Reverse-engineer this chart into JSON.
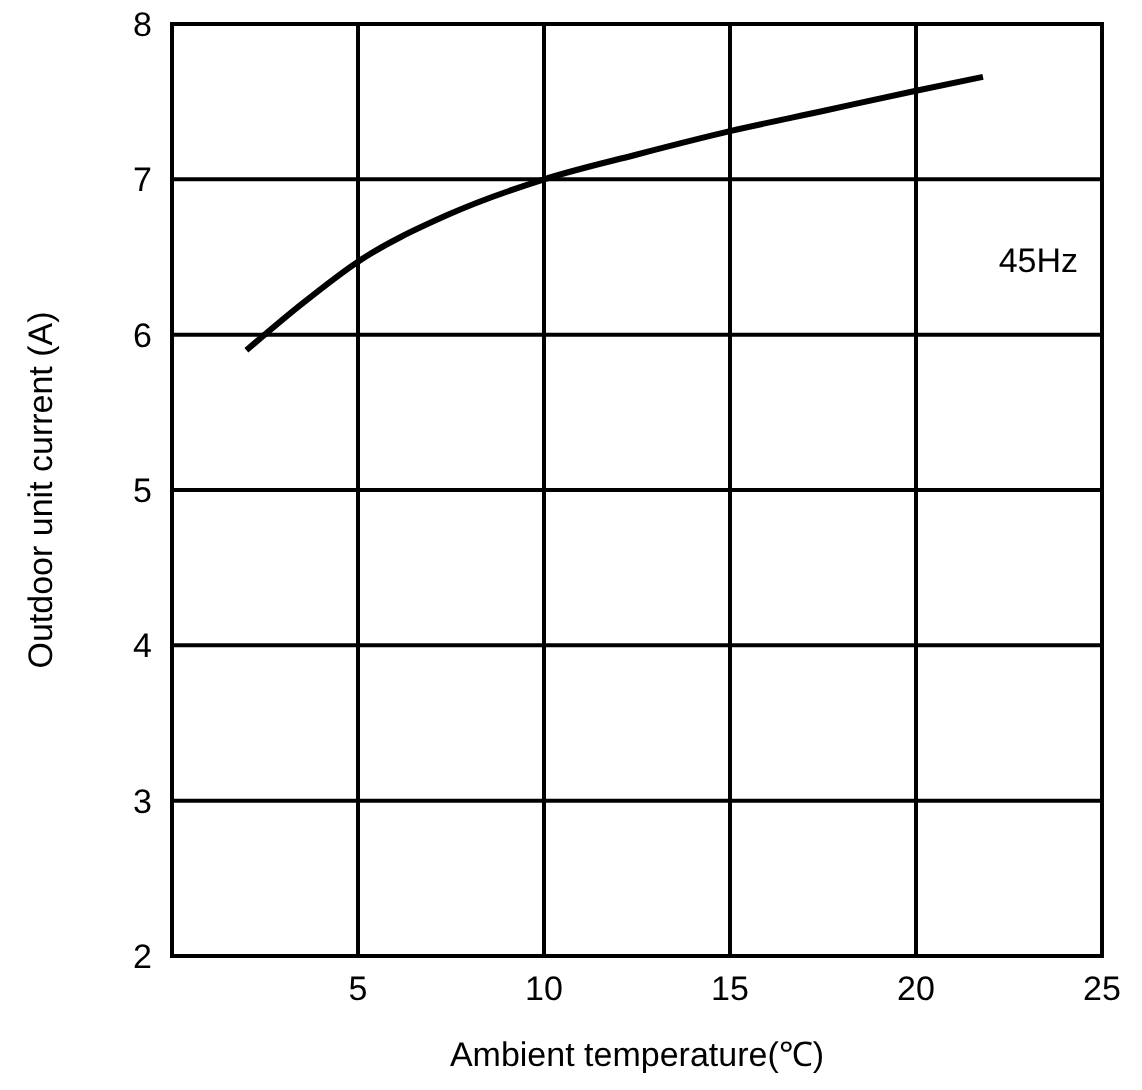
{
  "chart_data": {
    "type": "line",
    "xlabel": "Ambient temperature(℃)",
    "ylabel": "Outdoor unit current (A)",
    "annotations": [
      "45Hz"
    ],
    "series": [
      {
        "color": "#000000",
        "x": [
          2.0,
          3.5,
          5.0,
          7.4,
          10.0,
          12.5,
          15.0,
          17.5,
          20.0,
          21.8
        ],
        "values": [
          5.9,
          6.2,
          6.47,
          6.77,
          7.0,
          7.16,
          7.31,
          7.44,
          7.57,
          7.66
        ]
      }
    ],
    "xlim": [
      0,
      25
    ],
    "xticks": [
      {
        "value": 0,
        "label": null
      },
      5,
      10,
      15,
      20,
      25
    ],
    "ylim": [
      2,
      8
    ],
    "yticks": [
      2,
      3,
      4,
      5,
      6,
      7,
      8
    ],
    "grid": true,
    "marker": "none",
    "line_style": "solid"
  }
}
